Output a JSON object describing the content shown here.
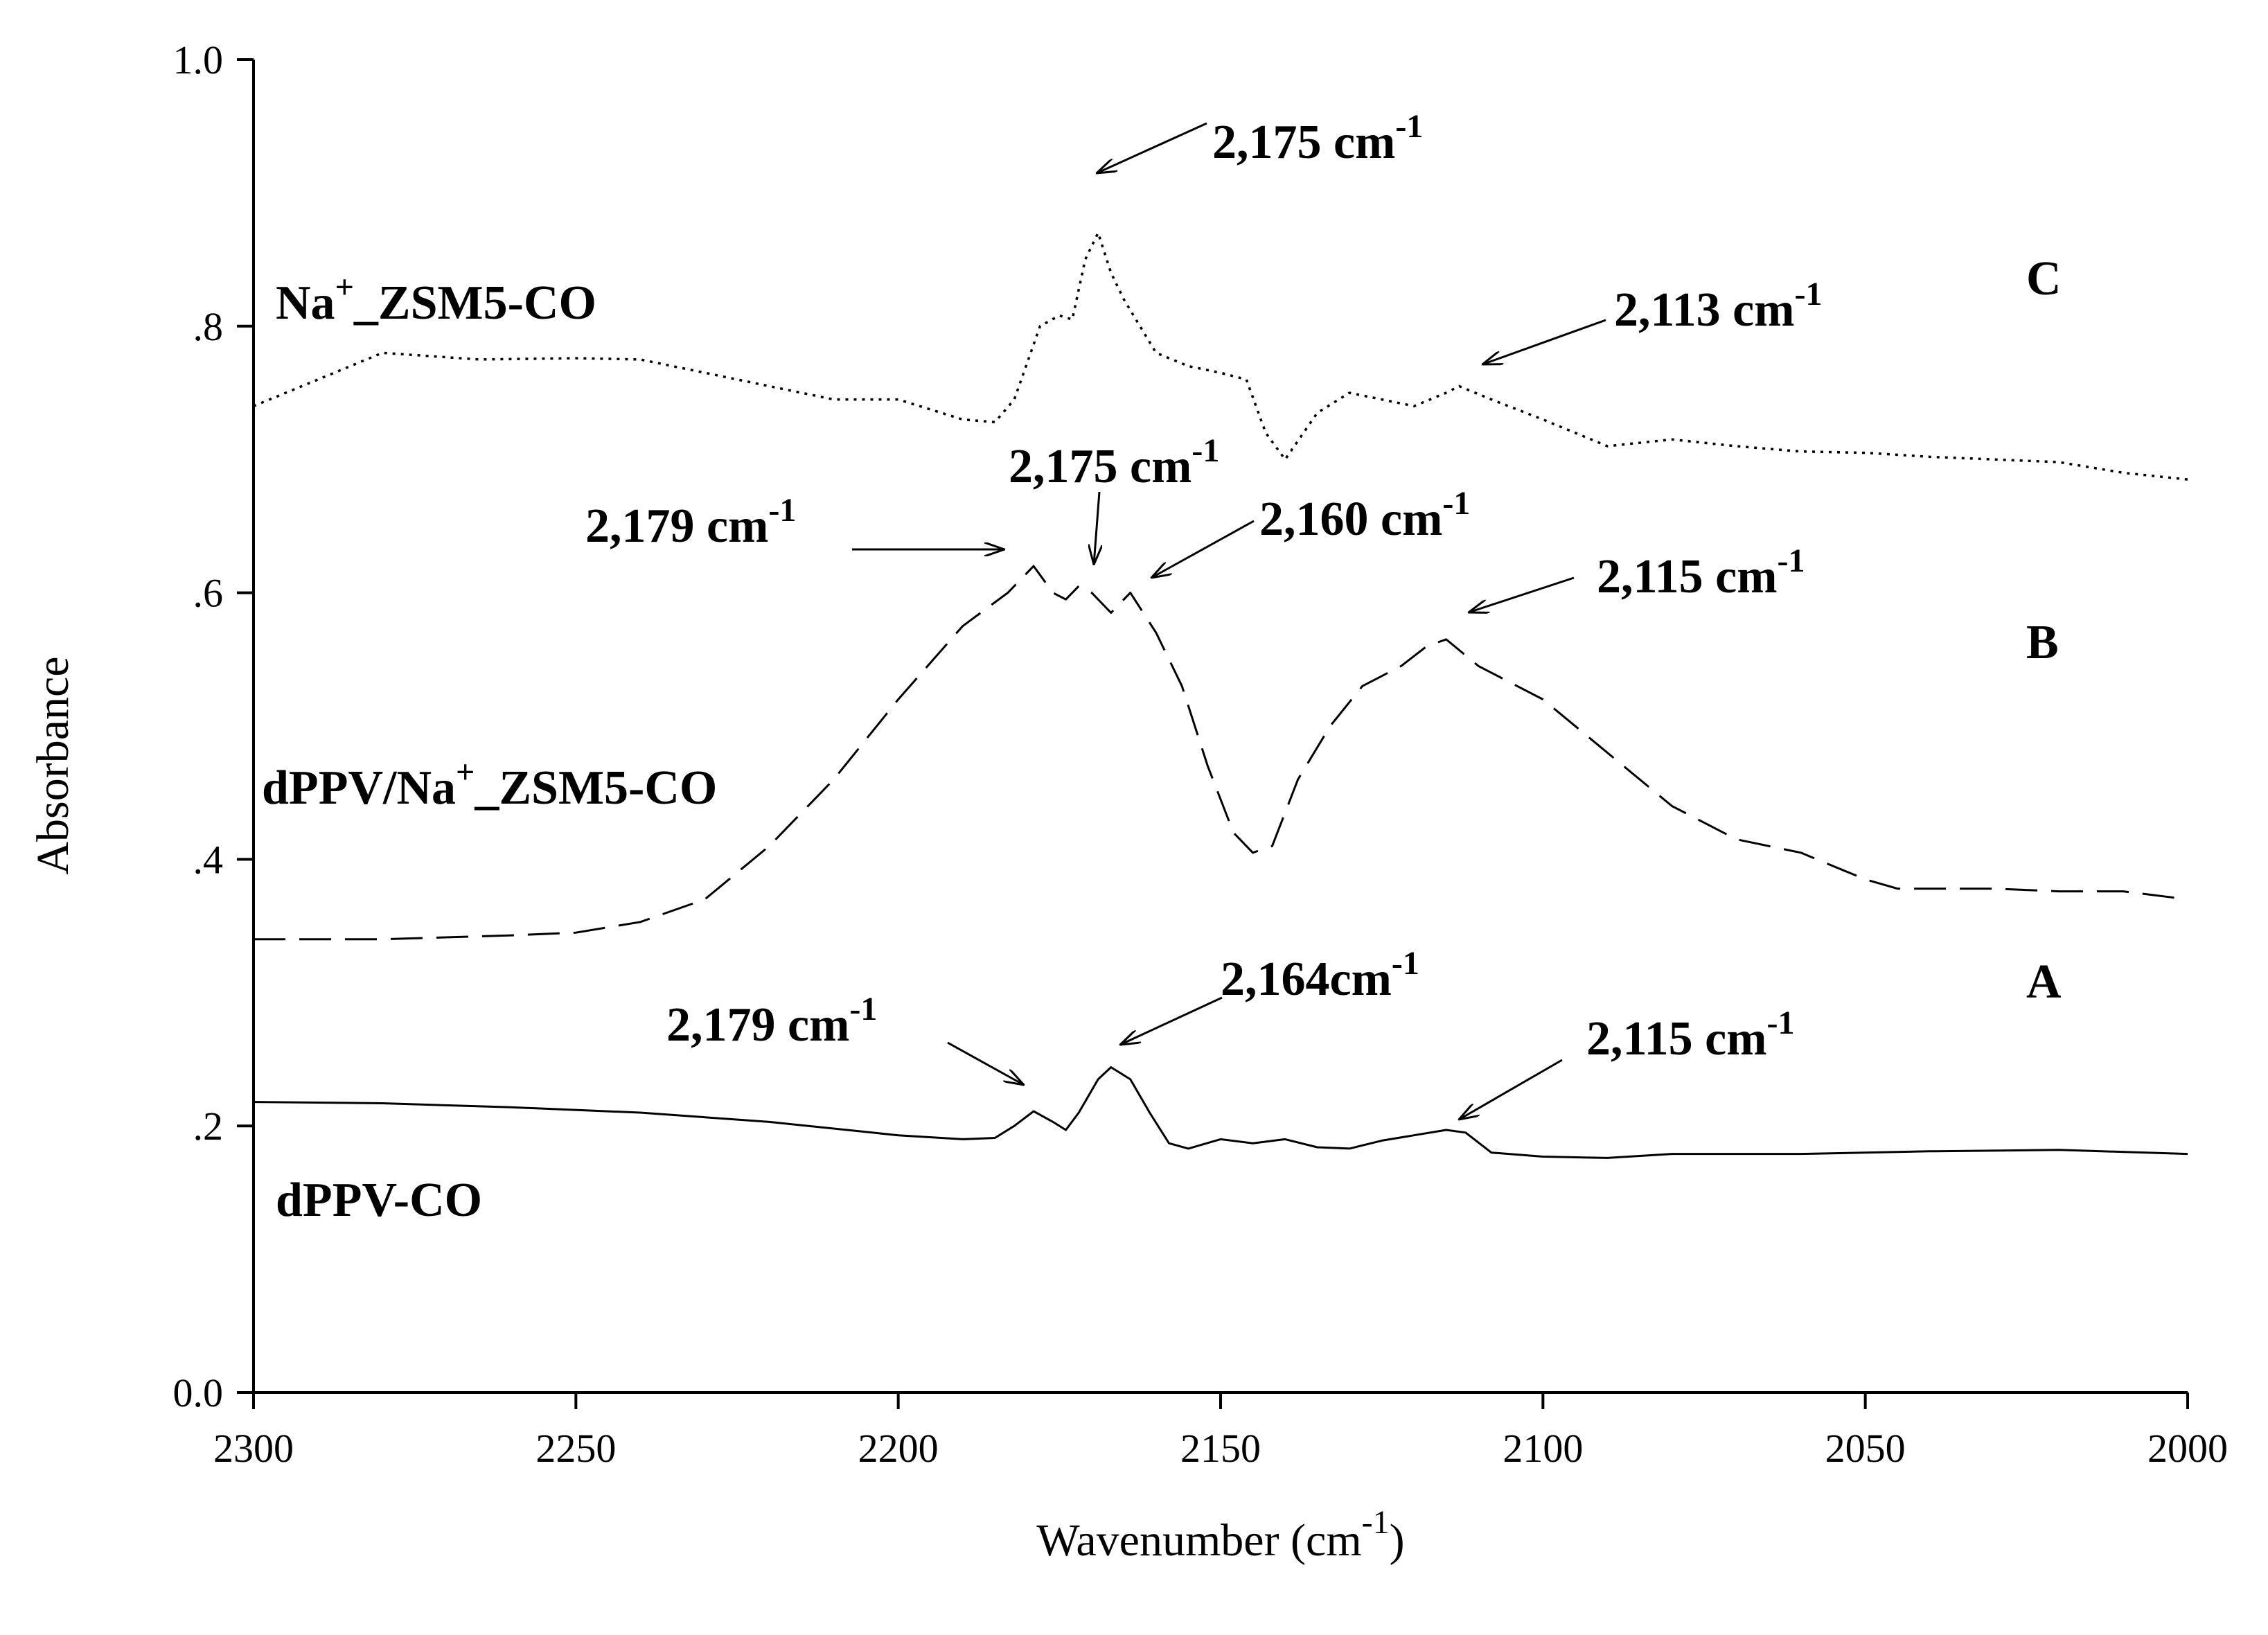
{
  "chart_data": {
    "type": "line",
    "xlabel": "Wavenumber (cm",
    "xlabel_sup": "-1",
    "xlabel_close": ")",
    "ylabel": "Absorbance",
    "xlim": [
      2300,
      2000
    ],
    "ylim": [
      0.0,
      1.0
    ],
    "x_ticks": [
      {
        "value": 2300,
        "label": "2300"
      },
      {
        "value": 2250,
        "label": "2250"
      },
      {
        "value": 2200,
        "label": "2200"
      },
      {
        "value": 2150,
        "label": "2150"
      },
      {
        "value": 2100,
        "label": "2100"
      },
      {
        "value": 2050,
        "label": "2050"
      },
      {
        "value": 2000,
        "label": "2000"
      }
    ],
    "y_ticks": [
      {
        "value": 0.0,
        "label": "0.0"
      },
      {
        "value": 0.2,
        "label": ".2"
      },
      {
        "value": 0.4,
        "label": ".4"
      },
      {
        "value": 0.6,
        "label": ".6"
      },
      {
        "value": 0.8,
        "label": ".8"
      },
      {
        "value": 1.0,
        "label": "1.0"
      }
    ],
    "series": [
      {
        "id": "A",
        "name": "dPPV-CO",
        "style": "solid",
        "points": [
          [
            2300,
            0.218
          ],
          [
            2280,
            0.217
          ],
          [
            2260,
            0.214
          ],
          [
            2240,
            0.21
          ],
          [
            2220,
            0.203
          ],
          [
            2200,
            0.193
          ],
          [
            2190,
            0.19
          ],
          [
            2185,
            0.191
          ],
          [
            2182,
            0.2
          ],
          [
            2179,
            0.211
          ],
          [
            2176,
            0.203
          ],
          [
            2174,
            0.197
          ],
          [
            2172,
            0.21
          ],
          [
            2169,
            0.235
          ],
          [
            2167,
            0.244
          ],
          [
            2164,
            0.235
          ],
          [
            2161,
            0.21
          ],
          [
            2158,
            0.187
          ],
          [
            2155,
            0.183
          ],
          [
            2150,
            0.19
          ],
          [
            2145,
            0.187
          ],
          [
            2140,
            0.19
          ],
          [
            2135,
            0.184
          ],
          [
            2130,
            0.183
          ],
          [
            2125,
            0.189
          ],
          [
            2120,
            0.193
          ],
          [
            2115,
            0.197
          ],
          [
            2112,
            0.195
          ],
          [
            2108,
            0.18
          ],
          [
            2100,
            0.177
          ],
          [
            2090,
            0.176
          ],
          [
            2080,
            0.179
          ],
          [
            2060,
            0.179
          ],
          [
            2040,
            0.181
          ],
          [
            2020,
            0.182
          ],
          [
            2000,
            0.179
          ]
        ]
      },
      {
        "id": "B",
        "name": "dPPV/Na+_ZSM5-CO",
        "style": "dashed",
        "points": [
          [
            2300,
            0.34
          ],
          [
            2280,
            0.34
          ],
          [
            2260,
            0.343
          ],
          [
            2250,
            0.345
          ],
          [
            2240,
            0.353
          ],
          [
            2230,
            0.37
          ],
          [
            2220,
            0.41
          ],
          [
            2210,
            0.46
          ],
          [
            2200,
            0.52
          ],
          [
            2190,
            0.575
          ],
          [
            2183,
            0.6
          ],
          [
            2179,
            0.62
          ],
          [
            2176,
            0.6
          ],
          [
            2174,
            0.595
          ],
          [
            2172,
            0.605
          ],
          [
            2170,
            0.6
          ],
          [
            2167,
            0.585
          ],
          [
            2164,
            0.6
          ],
          [
            2160,
            0.57
          ],
          [
            2156,
            0.53
          ],
          [
            2152,
            0.47
          ],
          [
            2148,
            0.42
          ],
          [
            2145,
            0.405
          ],
          [
            2142,
            0.41
          ],
          [
            2138,
            0.46
          ],
          [
            2133,
            0.5
          ],
          [
            2128,
            0.53
          ],
          [
            2122,
            0.545
          ],
          [
            2118,
            0.56
          ],
          [
            2115,
            0.565
          ],
          [
            2110,
            0.545
          ],
          [
            2100,
            0.52
          ],
          [
            2090,
            0.48
          ],
          [
            2080,
            0.44
          ],
          [
            2070,
            0.415
          ],
          [
            2060,
            0.405
          ],
          [
            2050,
            0.385
          ],
          [
            2045,
            0.378
          ],
          [
            2030,
            0.378
          ],
          [
            2020,
            0.376
          ],
          [
            2010,
            0.376
          ],
          [
            2000,
            0.37
          ]
        ]
      },
      {
        "id": "C",
        "name": "Na+_ZSM5-CO",
        "style": "dotted",
        "points": [
          [
            2300,
            0.74
          ],
          [
            2290,
            0.76
          ],
          [
            2280,
            0.78
          ],
          [
            2265,
            0.775
          ],
          [
            2250,
            0.776
          ],
          [
            2240,
            0.775
          ],
          [
            2230,
            0.765
          ],
          [
            2220,
            0.755
          ],
          [
            2210,
            0.745
          ],
          [
            2200,
            0.745
          ],
          [
            2190,
            0.73
          ],
          [
            2185,
            0.728
          ],
          [
            2182,
            0.745
          ],
          [
            2178,
            0.8
          ],
          [
            2175,
            0.808
          ],
          [
            2173,
            0.805
          ],
          [
            2171,
            0.85
          ],
          [
            2169,
            0.87
          ],
          [
            2167,
            0.84
          ],
          [
            2165,
            0.82
          ],
          [
            2160,
            0.78
          ],
          [
            2155,
            0.77
          ],
          [
            2150,
            0.765
          ],
          [
            2146,
            0.76
          ],
          [
            2143,
            0.72
          ],
          [
            2140,
            0.7
          ],
          [
            2135,
            0.735
          ],
          [
            2130,
            0.75
          ],
          [
            2125,
            0.745
          ],
          [
            2120,
            0.74
          ],
          [
            2115,
            0.75
          ],
          [
            2113,
            0.755
          ],
          [
            2108,
            0.745
          ],
          [
            2100,
            0.73
          ],
          [
            2090,
            0.71
          ],
          [
            2080,
            0.715
          ],
          [
            2070,
            0.71
          ],
          [
            2060,
            0.706
          ],
          [
            2050,
            0.705
          ],
          [
            2040,
            0.702
          ],
          [
            2030,
            0.7
          ],
          [
            2020,
            0.698
          ],
          [
            2010,
            0.69
          ],
          [
            2000,
            0.685
          ]
        ]
      }
    ],
    "series_labels": [
      {
        "id": "A",
        "text": "dPPV-CO",
        "letter": "A"
      },
      {
        "id": "B",
        "text_before": "dPPV/Na",
        "sup": "+",
        "text_after": "_ZSM5-CO",
        "letter": "B"
      },
      {
        "id": "C",
        "text_before": "Na",
        "sup": "+",
        "text_after": "_ZSM5-CO",
        "letter": "C"
      }
    ],
    "annotations": [
      {
        "series": "C",
        "label": "2,175 cm",
        "sup": "-1",
        "peak": 2175
      },
      {
        "series": "C",
        "label": "2,113 cm",
        "sup": "-1",
        "peak": 2113
      },
      {
        "series": "B",
        "label": "2,179 cm",
        "sup": "-1",
        "peak": 2179
      },
      {
        "series": "B",
        "label": "2,175 cm",
        "sup": "-1",
        "peak": 2175
      },
      {
        "series": "B",
        "label": "2,160 cm",
        "sup": "-1",
        "peak": 2160
      },
      {
        "series": "B",
        "label": "2,115 cm",
        "sup": "-1",
        "peak": 2115
      },
      {
        "series": "A",
        "label": "2,179 cm",
        "sup": "-1",
        "peak": 2179
      },
      {
        "series": "A",
        "label": "2,164cm",
        "sup": "-1",
        "peak": 2164
      },
      {
        "series": "A",
        "label": "2,115 cm",
        "sup": "-1",
        "peak": 2115
      }
    ],
    "grid": false,
    "legend": "none"
  }
}
